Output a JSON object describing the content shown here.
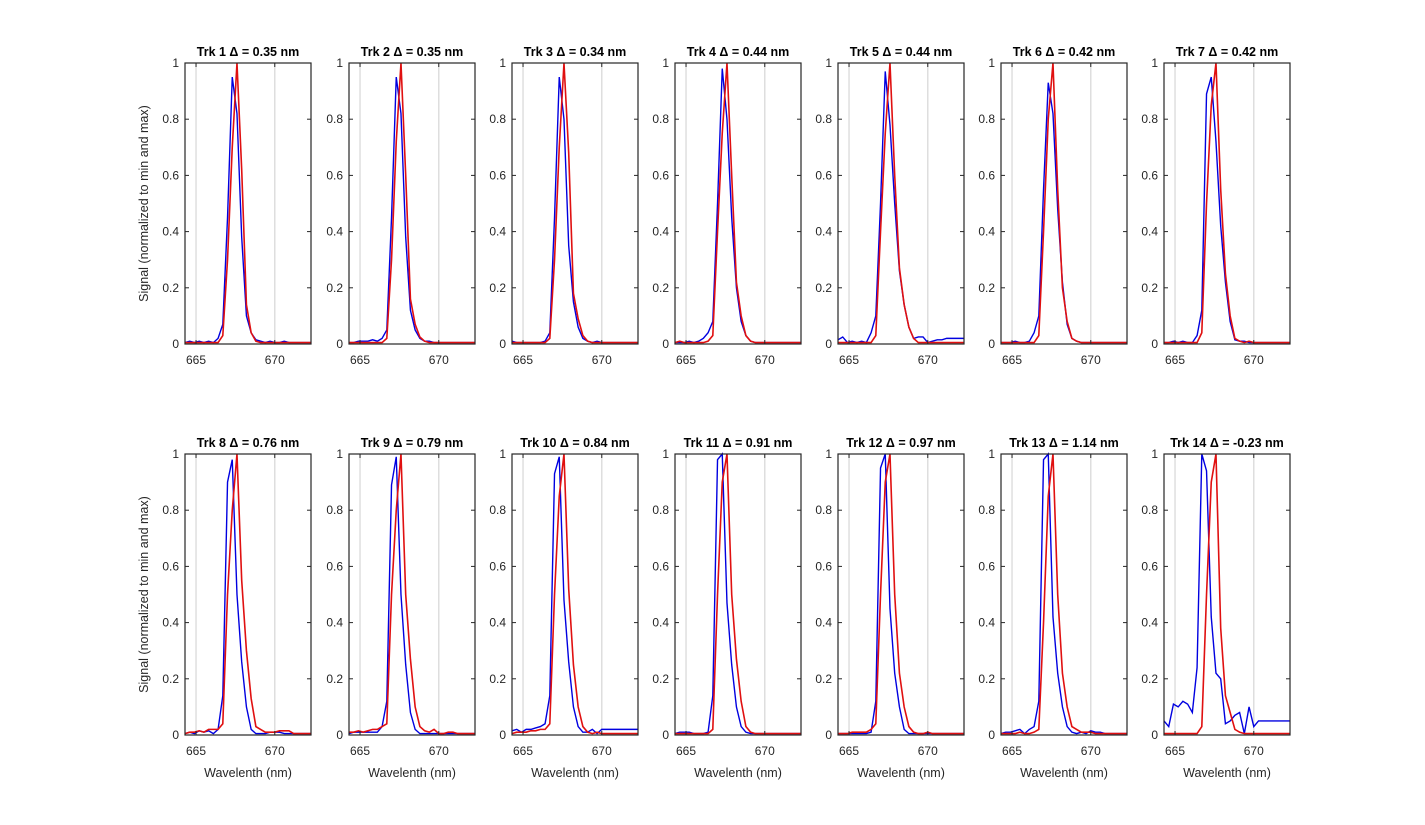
{
  "chart_data": {
    "type": "line",
    "grid": "vertical",
    "xlim": [
      664.3,
      672.3
    ],
    "ylim": [
      0,
      1
    ],
    "x_ticks": [
      665,
      670
    ],
    "y_ticks": [
      0,
      0.2,
      0.4,
      0.6,
      0.8,
      1
    ],
    "x_tick_labels": [
      "665",
      "670"
    ],
    "y_tick_labels": [
      "0",
      "0.2",
      "0.4",
      "0.6",
      "0.8",
      "1"
    ],
    "xlabel": "Wavelenth (nm)",
    "ylabel": "Signal (normalized to min and max)",
    "colors": {
      "blue": "#0000e0",
      "red": "#e01010"
    },
    "x": [
      664.3,
      664.6,
      664.9,
      665.2,
      665.5,
      665.8,
      666.1,
      666.4,
      666.7,
      667.0,
      667.3,
      667.6,
      667.9,
      668.2,
      668.5,
      668.8,
      669.1,
      669.4,
      669.7,
      670.0,
      670.3,
      670.6,
      670.9,
      671.2,
      671.5,
      671.8,
      672.1,
      672.3
    ],
    "panels": [
      {
        "title": "Trk 1 Δ = 0.35 nm",
        "blue": [
          0.005,
          0.01,
          0.005,
          0.01,
          0.005,
          0.01,
          0.005,
          0.02,
          0.07,
          0.45,
          0.95,
          0.82,
          0.38,
          0.1,
          0.04,
          0.015,
          0.01,
          0.005,
          0.01,
          0.005,
          0.005,
          0.01,
          0.005,
          0.005,
          0.005,
          0.005,
          0.005,
          0.005
        ],
        "red": [
          0.005,
          0.005,
          0.005,
          0.005,
          0.005,
          0.005,
          0.005,
          0.005,
          0.03,
          0.3,
          0.7,
          1.0,
          0.62,
          0.14,
          0.04,
          0.01,
          0.005,
          0.005,
          0.005,
          0.005,
          0.005,
          0.005,
          0.005,
          0.005,
          0.005,
          0.005,
          0.005,
          0.005
        ]
      },
      {
        "title": "Trk 2 Δ = 0.35 nm",
        "blue": [
          0.005,
          0.005,
          0.01,
          0.01,
          0.01,
          0.015,
          0.01,
          0.02,
          0.05,
          0.45,
          0.95,
          0.82,
          0.38,
          0.12,
          0.05,
          0.02,
          0.01,
          0.01,
          0.005,
          0.005,
          0.005,
          0.005,
          0.005,
          0.005,
          0.005,
          0.005,
          0.005,
          0.005
        ],
        "red": [
          0.005,
          0.005,
          0.005,
          0.005,
          0.005,
          0.005,
          0.005,
          0.005,
          0.02,
          0.3,
          0.72,
          1.0,
          0.6,
          0.16,
          0.07,
          0.025,
          0.01,
          0.005,
          0.005,
          0.005,
          0.005,
          0.005,
          0.005,
          0.005,
          0.005,
          0.005,
          0.005,
          0.005
        ]
      },
      {
        "title": "Trk 3 Δ = 0.34 nm",
        "blue": [
          0.01,
          0.005,
          0.005,
          0.005,
          0.005,
          0.005,
          0.005,
          0.01,
          0.04,
          0.45,
          0.95,
          0.8,
          0.35,
          0.15,
          0.06,
          0.02,
          0.01,
          0.005,
          0.01,
          0.005,
          0.005,
          0.005,
          0.005,
          0.005,
          0.005,
          0.005,
          0.005,
          0.005
        ],
        "red": [
          0.005,
          0.005,
          0.005,
          0.005,
          0.005,
          0.005,
          0.005,
          0.005,
          0.02,
          0.3,
          0.7,
          1.0,
          0.68,
          0.18,
          0.09,
          0.03,
          0.01,
          0.005,
          0.005,
          0.005,
          0.005,
          0.005,
          0.005,
          0.005,
          0.005,
          0.005,
          0.005,
          0.005
        ]
      },
      {
        "title": "Trk 4 Δ = 0.44 nm",
        "blue": [
          0.005,
          0.005,
          0.005,
          0.01,
          0.005,
          0.01,
          0.02,
          0.04,
          0.08,
          0.5,
          0.98,
          0.8,
          0.45,
          0.2,
          0.08,
          0.03,
          0.01,
          0.005,
          0.005,
          0.005,
          0.005,
          0.005,
          0.005,
          0.005,
          0.005,
          0.005,
          0.005,
          0.005
        ],
        "red": [
          0.005,
          0.01,
          0.005,
          0.005,
          0.005,
          0.005,
          0.005,
          0.01,
          0.03,
          0.4,
          0.75,
          1.0,
          0.6,
          0.22,
          0.1,
          0.03,
          0.01,
          0.005,
          0.005,
          0.005,
          0.005,
          0.005,
          0.005,
          0.005,
          0.005,
          0.005,
          0.005,
          0.005
        ]
      },
      {
        "title": "Trk 5 Δ = 0.44 nm",
        "blue": [
          0.015,
          0.025,
          0.005,
          0.01,
          0.005,
          0.01,
          0.005,
          0.04,
          0.1,
          0.5,
          0.97,
          0.78,
          0.5,
          0.26,
          0.14,
          0.06,
          0.02,
          0.025,
          0.025,
          0.005,
          0.01,
          0.015,
          0.015,
          0.02,
          0.02,
          0.02,
          0.02,
          0.02
        ],
        "red": [
          0.005,
          0.005,
          0.005,
          0.005,
          0.005,
          0.005,
          0.005,
          0.005,
          0.03,
          0.4,
          0.75,
          1.0,
          0.6,
          0.27,
          0.14,
          0.06,
          0.02,
          0.005,
          0.005,
          0.005,
          0.005,
          0.005,
          0.005,
          0.005,
          0.005,
          0.005,
          0.005,
          0.005
        ]
      },
      {
        "title": "Trk 6 Δ = 0.42 nm",
        "blue": [
          0.005,
          0.005,
          0.005,
          0.01,
          0.005,
          0.005,
          0.01,
          0.04,
          0.1,
          0.55,
          0.93,
          0.82,
          0.48,
          0.22,
          0.07,
          0.02,
          0.01,
          0.005,
          0.005,
          0.005,
          0.005,
          0.005,
          0.005,
          0.005,
          0.005,
          0.005,
          0.005,
          0.005
        ],
        "red": [
          0.005,
          0.005,
          0.005,
          0.005,
          0.005,
          0.005,
          0.005,
          0.005,
          0.03,
          0.4,
          0.8,
          1.0,
          0.55,
          0.2,
          0.08,
          0.02,
          0.01,
          0.005,
          0.005,
          0.005,
          0.005,
          0.005,
          0.005,
          0.005,
          0.005,
          0.005,
          0.005,
          0.005
        ]
      },
      {
        "title": "Trk 7 Δ = 0.42 nm",
        "blue": [
          0.005,
          0.005,
          0.01,
          0.005,
          0.01,
          0.005,
          0.005,
          0.03,
          0.12,
          0.89,
          0.95,
          0.72,
          0.42,
          0.22,
          0.08,
          0.015,
          0.01,
          0.01,
          0.005,
          0.005,
          0.005,
          0.005,
          0.005,
          0.005,
          0.005,
          0.005,
          0.005,
          0.005
        ],
        "red": [
          0.005,
          0.005,
          0.005,
          0.005,
          0.005,
          0.005,
          0.005,
          0.005,
          0.04,
          0.5,
          0.85,
          1.0,
          0.55,
          0.25,
          0.1,
          0.02,
          0.01,
          0.005,
          0.01,
          0.005,
          0.005,
          0.005,
          0.005,
          0.005,
          0.005,
          0.005,
          0.005,
          0.005
        ]
      },
      {
        "title": "Trk 8 Δ = 0.76 nm",
        "blue": [
          0.005,
          0.01,
          0.005,
          0.015,
          0.01,
          0.015,
          0.005,
          0.02,
          0.14,
          0.9,
          0.98,
          0.5,
          0.26,
          0.1,
          0.02,
          0.005,
          0.005,
          0.005,
          0.01,
          0.01,
          0.01,
          0.005,
          0.005,
          0.005,
          0.005,
          0.005,
          0.005,
          0.005
        ],
        "red": [
          0.005,
          0.01,
          0.01,
          0.015,
          0.01,
          0.02,
          0.02,
          0.02,
          0.04,
          0.5,
          0.8,
          1.0,
          0.55,
          0.3,
          0.13,
          0.03,
          0.02,
          0.01,
          0.01,
          0.01,
          0.015,
          0.015,
          0.015,
          0.005,
          0.005,
          0.005,
          0.005,
          0.005
        ]
      },
      {
        "title": "Trk 9 Δ = 0.79 nm",
        "blue": [
          0.005,
          0.01,
          0.01,
          0.01,
          0.01,
          0.01,
          0.01,
          0.03,
          0.12,
          0.89,
          0.99,
          0.5,
          0.25,
          0.08,
          0.02,
          0.005,
          0.005,
          0.005,
          0.005,
          0.005,
          0.005,
          0.005,
          0.005,
          0.005,
          0.005,
          0.005,
          0.005,
          0.005
        ],
        "red": [
          0.01,
          0.01,
          0.015,
          0.01,
          0.015,
          0.02,
          0.02,
          0.03,
          0.04,
          0.5,
          0.8,
          1.0,
          0.5,
          0.27,
          0.1,
          0.03,
          0.015,
          0.01,
          0.02,
          0.005,
          0.005,
          0.01,
          0.01,
          0.005,
          0.005,
          0.005,
          0.005,
          0.005
        ]
      },
      {
        "title": "Trk 10 Δ = 0.84 nm",
        "blue": [
          0.015,
          0.02,
          0.01,
          0.02,
          0.02,
          0.025,
          0.03,
          0.04,
          0.14,
          0.93,
          0.99,
          0.48,
          0.26,
          0.1,
          0.03,
          0.01,
          0.01,
          0.02,
          0.005,
          0.02,
          0.02,
          0.02,
          0.02,
          0.02,
          0.02,
          0.02,
          0.02,
          0.02
        ],
        "red": [
          0.005,
          0.01,
          0.01,
          0.01,
          0.015,
          0.015,
          0.02,
          0.02,
          0.04,
          0.5,
          0.85,
          1.0,
          0.52,
          0.25,
          0.1,
          0.03,
          0.01,
          0.005,
          0.01,
          0.005,
          0.005,
          0.005,
          0.005,
          0.005,
          0.005,
          0.005,
          0.005,
          0.005
        ]
      },
      {
        "title": "Trk 11 Δ = 0.91 nm",
        "blue": [
          0.005,
          0.01,
          0.01,
          0.01,
          0.005,
          0.005,
          0.005,
          0.01,
          0.14,
          0.98,
          1.0,
          0.47,
          0.25,
          0.1,
          0.03,
          0.01,
          0.005,
          0.005,
          0.005,
          0.005,
          0.005,
          0.005,
          0.005,
          0.005,
          0.005,
          0.005,
          0.005,
          0.005
        ],
        "red": [
          0.005,
          0.005,
          0.005,
          0.005,
          0.005,
          0.005,
          0.005,
          0.005,
          0.02,
          0.5,
          0.9,
          1.0,
          0.5,
          0.27,
          0.12,
          0.03,
          0.01,
          0.005,
          0.005,
          0.005,
          0.005,
          0.005,
          0.005,
          0.005,
          0.005,
          0.005,
          0.005,
          0.005
        ]
      },
      {
        "title": "Trk 12 Δ = 0.97 nm",
        "blue": [
          0.005,
          0.005,
          0.005,
          0.005,
          0.005,
          0.005,
          0.005,
          0.01,
          0.12,
          0.95,
          1.0,
          0.45,
          0.22,
          0.1,
          0.02,
          0.005,
          0.005,
          0.005,
          0.005,
          0.005,
          0.005,
          0.005,
          0.005,
          0.005,
          0.005,
          0.005,
          0.005,
          0.005
        ],
        "red": [
          0.005,
          0.005,
          0.005,
          0.01,
          0.01,
          0.01,
          0.01,
          0.02,
          0.04,
          0.5,
          0.9,
          1.0,
          0.5,
          0.22,
          0.1,
          0.03,
          0.01,
          0.005,
          0.005,
          0.01,
          0.005,
          0.005,
          0.005,
          0.005,
          0.005,
          0.005,
          0.005,
          0.005
        ]
      },
      {
        "title": "Trk 13 Δ = 1.14 nm",
        "blue": [
          0.005,
          0.01,
          0.01,
          0.015,
          0.02,
          0.005,
          0.02,
          0.03,
          0.12,
          0.98,
          1.0,
          0.42,
          0.22,
          0.1,
          0.03,
          0.01,
          0.005,
          0.01,
          0.005,
          0.015,
          0.01,
          0.01,
          0.005,
          0.005,
          0.005,
          0.005,
          0.005,
          0.005
        ],
        "red": [
          0.005,
          0.005,
          0.005,
          0.005,
          0.01,
          0.005,
          0.005,
          0.01,
          0.02,
          0.4,
          0.85,
          1.0,
          0.5,
          0.22,
          0.1,
          0.03,
          0.02,
          0.01,
          0.01,
          0.01,
          0.005,
          0.005,
          0.005,
          0.005,
          0.005,
          0.005,
          0.005,
          0.005
        ]
      },
      {
        "title": "Trk 14 Δ = -0.23 nm",
        "blue": [
          0.05,
          0.03,
          0.11,
          0.1,
          0.12,
          0.11,
          0.08,
          0.24,
          1.0,
          0.94,
          0.42,
          0.22,
          0.2,
          0.04,
          0.05,
          0.07,
          0.08,
          0.005,
          0.1,
          0.03,
          0.05,
          0.05,
          0.05,
          0.05,
          0.05,
          0.05,
          0.05,
          0.05
        ],
        "red": [
          0.005,
          0.005,
          0.005,
          0.005,
          0.005,
          0.005,
          0.005,
          0.005,
          0.03,
          0.5,
          0.9,
          1.0,
          0.38,
          0.14,
          0.08,
          0.02,
          0.01,
          0.005,
          0.005,
          0.005,
          0.005,
          0.005,
          0.005,
          0.005,
          0.005,
          0.005,
          0.005,
          0.005
        ]
      }
    ]
  }
}
